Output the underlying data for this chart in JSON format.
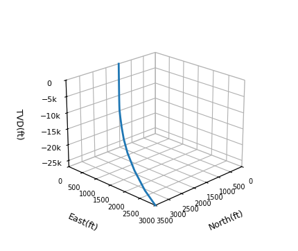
{
  "north": [
    1500,
    1500,
    1500,
    1500,
    1500,
    1500,
    1500,
    1510,
    1530,
    1580,
    1680,
    1850,
    2100,
    2400,
    2800,
    3200,
    3500
  ],
  "east": [
    0,
    0,
    0,
    0,
    0,
    0,
    0,
    10,
    30,
    80,
    200,
    400,
    700,
    1100,
    1700,
    2400,
    3000
  ],
  "tvd": [
    0,
    -1000,
    -2000,
    -4000,
    -6000,
    -8000,
    -10000,
    -11500,
    -13000,
    -14200,
    -16000,
    -18000,
    -20000,
    -22000,
    -24000,
    -26000,
    -27000
  ],
  "north_lim": [
    0,
    3500
  ],
  "east_lim": [
    0,
    3000
  ],
  "tvd_lim": [
    -27000,
    0
  ],
  "north_ticks": [
    0,
    500,
    1000,
    1500,
    2000,
    2500,
    3000,
    3500
  ],
  "east_ticks": [
    0,
    500,
    1000,
    1500,
    2000,
    2500,
    3000
  ],
  "tvd_ticks": [
    0,
    -5000,
    -10000,
    -15000,
    -20000,
    -25000
  ],
  "tvd_tick_labels": [
    "0",
    "−5k",
    "−10k",
    "−15k",
    "−20k",
    "−25k"
  ],
  "xlabel": "North(ft)",
  "ylabel": "East(ft)",
  "zlabel": "TVD(ft)",
  "line_color": "#1f77b4",
  "line_width": 2.0,
  "elev": 22,
  "azim": 225,
  "figsize": [
    4.3,
    3.62
  ],
  "dpi": 100
}
